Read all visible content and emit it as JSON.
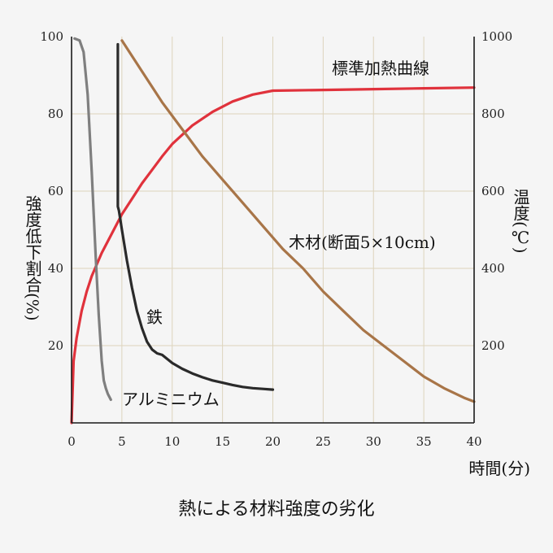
{
  "chart_data": {
    "type": "line",
    "title": "熱による材料強度の劣化",
    "xlabel": "時間(分)",
    "ylabel_left": "強度低下割合(%)",
    "ylabel_right": "温度(℃)",
    "xlim": [
      0,
      40
    ],
    "ylim_left": [
      0,
      100
    ],
    "ylim_right": [
      0,
      1000
    ],
    "x_ticks": [
      "0",
      "5",
      "10",
      "15",
      "20",
      "25",
      "30",
      "35",
      "40"
    ],
    "y_left_ticks": [
      "20",
      "40",
      "60",
      "80",
      "100"
    ],
    "y_right_ticks": [
      "200",
      "400",
      "600",
      "800",
      "1000"
    ],
    "grid": true,
    "colors": {
      "standard": "#e0323c",
      "wood": "#a87548",
      "iron": "#2a2a2a",
      "aluminum": "#7f7f7f",
      "grid": "#ddd4bc",
      "background": "#f5f5f5"
    },
    "series": [
      {
        "name": "標準加熱曲線",
        "axis": "right",
        "color_key": "standard",
        "x": [
          0,
          0.2,
          0.5,
          1,
          1.5,
          2,
          3,
          4,
          5,
          6,
          7,
          8,
          9,
          10,
          12,
          14,
          16,
          18,
          20,
          25,
          30,
          35,
          40
        ],
        "y": [
          0,
          160,
          220,
          290,
          340,
          380,
          440,
          490,
          540,
          580,
          620,
          655,
          690,
          722,
          770,
          805,
          832,
          850,
          860,
          862,
          864,
          866,
          868
        ]
      },
      {
        "name": "木材(断面5×10cm)",
        "axis": "left",
        "color_key": "wood",
        "x": [
          5,
          7,
          9,
          11,
          13,
          15,
          17,
          19,
          21,
          23,
          25,
          27,
          29,
          31,
          33,
          35,
          37,
          39,
          40
        ],
        "y": [
          99,
          91,
          83,
          76,
          69,
          63,
          57,
          51,
          45,
          40,
          34,
          29,
          24,
          20,
          16,
          12,
          9,
          6.5,
          5.5
        ]
      },
      {
        "name": "鉄",
        "axis": "left",
        "color_key": "iron",
        "x": [
          4.6,
          4.6,
          4.7,
          5,
          5.5,
          6,
          6.5,
          7,
          7.5,
          8,
          8.5,
          9,
          10,
          11,
          12,
          13,
          14,
          15,
          16,
          17,
          18,
          19,
          20
        ],
        "y": [
          98,
          56,
          55,
          50,
          42,
          35,
          29,
          24.5,
          21,
          19,
          18,
          17.6,
          15.5,
          14,
          12.8,
          11.8,
          11,
          10.4,
          9.8,
          9.3,
          9,
          8.8,
          8.6
        ]
      },
      {
        "name": "アルミニウム",
        "axis": "left",
        "color_key": "aluminum",
        "x": [
          0.3,
          0.8,
          1.2,
          1.6,
          2.0,
          2.4,
          2.7,
          3.0,
          3.2,
          3.4,
          3.6,
          3.9
        ],
        "y": [
          99.5,
          99,
          96,
          85,
          65,
          43,
          28,
          16,
          11,
          9,
          7.5,
          6
        ]
      }
    ],
    "labels": {
      "standard": "標準加熱曲線",
      "wood": "木材(断面5×10cm)",
      "iron": "鉄",
      "aluminum": "アルミニウム"
    }
  }
}
